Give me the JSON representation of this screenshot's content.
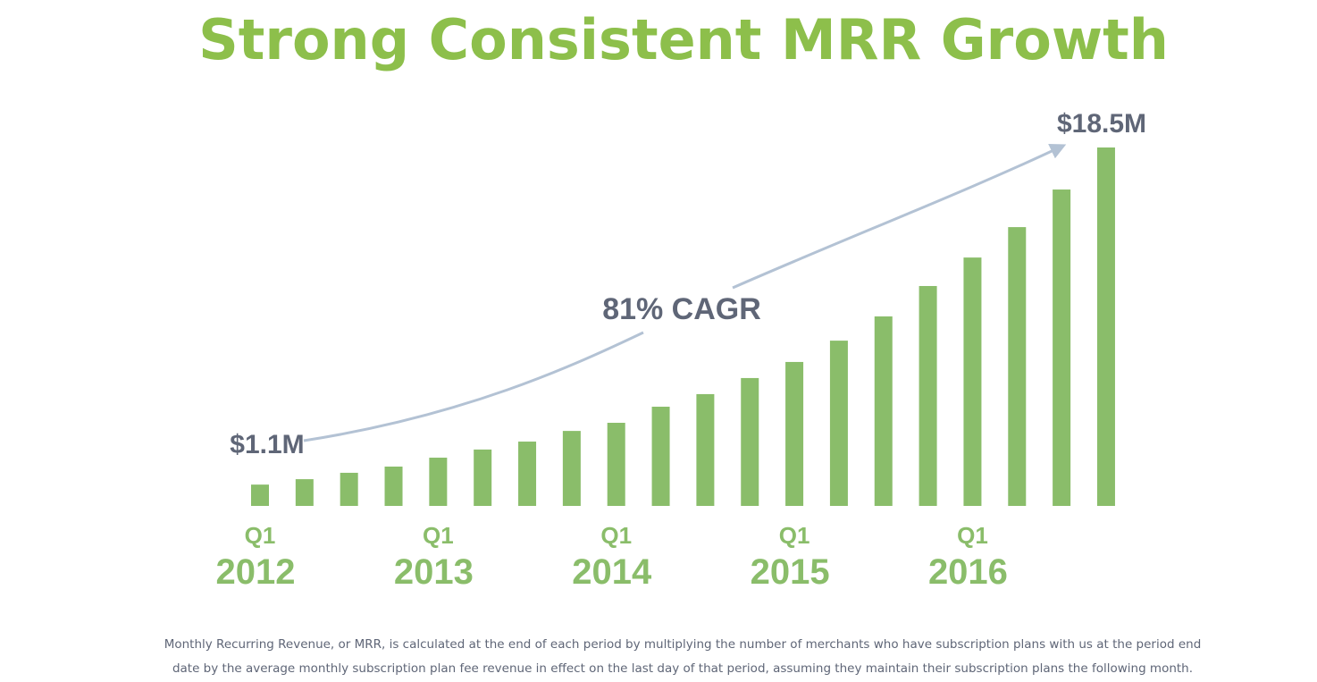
{
  "chart_data": {
    "type": "bar",
    "title": "Strong Consistent MRR Growth",
    "categories": [
      {
        "quarter": "Q1",
        "year": "2012"
      },
      null,
      null,
      null,
      {
        "quarter": "Q1",
        "year": "2013"
      },
      null,
      null,
      null,
      {
        "quarter": "Q1",
        "year": "2014"
      },
      null,
      null,
      null,
      {
        "quarter": "Q1",
        "year": "2015"
      },
      null,
      null,
      null,
      {
        "quarter": "Q1",
        "year": "2016"
      },
      null,
      null,
      null
    ],
    "values": [
      1.1,
      1.38,
      1.71,
      2.03,
      2.49,
      2.91,
      3.32,
      3.87,
      4.29,
      5.12,
      5.77,
      6.6,
      7.43,
      8.53,
      9.78,
      11.35,
      12.82,
      14.39,
      16.33,
      18.5
    ],
    "value_labels": [
      "$1.1M",
      null,
      null,
      null,
      null,
      null,
      null,
      null,
      null,
      null,
      null,
      null,
      null,
      null,
      null,
      null,
      null,
      null,
      null,
      "$18.5M"
    ],
    "color": "#8abd6a",
    "annotation": "81% CAGR",
    "footnote": [
      "Monthly Recurring Revenue, or MRR, is calculated at the end of each period by multiplying the number of merchants who have subscription plans with us at the period end",
      "date by the average monthly subscription plan fee revenue in effect on the last day of that period, assuming they maintain their subscription plans the following month."
    ]
  }
}
